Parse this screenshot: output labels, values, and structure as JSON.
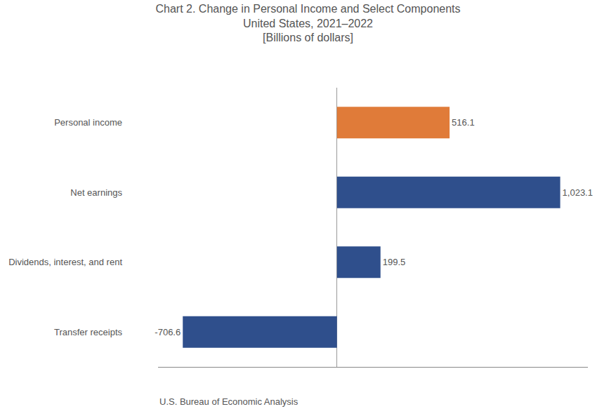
{
  "chart_data": {
    "type": "bar",
    "orientation": "horizontal",
    "title": "Chart 2. Change in Personal Income and Select Components",
    "subtitle": [
      "United States, 2021–2022",
      "[Billions of dollars]"
    ],
    "annotations": [
      "U.S. Bureau of Economic Analysis"
    ],
    "categories": [
      "Personal income",
      "Net earnings",
      "Dividends, interest, and rent",
      "Transfer receipts"
    ],
    "values": [
      516.1,
      1023.1,
      199.5,
      -706.6
    ],
    "value_labels": [
      "516.1",
      "1,023.1",
      "199.5",
      "-706.6"
    ],
    "colors": [
      "#E07B39",
      "#2F4F8C",
      "#2F4F8C",
      "#2F4F8C"
    ],
    "xlim": [
      -820,
      1150
    ],
    "xticks": [],
    "grid": false,
    "data_labels": true,
    "tick_labels": "y"
  }
}
